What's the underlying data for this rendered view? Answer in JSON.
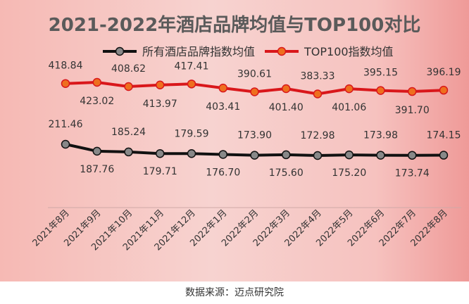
{
  "source_note": "数据来源：迈点研究院",
  "chart_data": {
    "type": "line",
    "title": "2021-2022年酒店品牌均值与TOP100对比",
    "xlabel": "",
    "ylabel": "",
    "grid": false,
    "legend_position": "top",
    "categories": [
      "2021年8月",
      "2021年9月",
      "2021年10月",
      "2021年11月",
      "2021年12月",
      "2022年1月",
      "2022年2月",
      "2022年3月",
      "2022年4月",
      "2022年5月",
      "2022年6月",
      "2022年7月",
      "2022年8月"
    ],
    "series": [
      {
        "name": "所有酒店品牌指数均值",
        "color": "#111111",
        "marker_color": "#888888",
        "values": [
          211.46,
          187.76,
          185.24,
          179.71,
          179.59,
          176.7,
          173.9,
          175.6,
          172.98,
          175.2,
          173.98,
          173.74,
          174.15
        ],
        "labels": [
          "211.46",
          "187.76",
          "185.24",
          "179.71",
          "179.59",
          "176.70",
          "173.90",
          "175.60",
          "172.98",
          "175.20",
          "173.98",
          "173.74",
          "174.15"
        ]
      },
      {
        "name": "TOP100指数均值",
        "color": "#d9171b",
        "marker_color": "#ee6f1e",
        "values": [
          418.84,
          423.02,
          408.62,
          413.97,
          417.41,
          403.41,
          390.61,
          401.4,
          383.33,
          401.06,
          395.15,
          391.7,
          396.19
        ],
        "labels": [
          "418.84",
          "423.02",
          "408.62",
          "413.97",
          "417.41",
          "403.41",
          "390.61",
          "401.40",
          "383.33",
          "401.06",
          "395.15",
          "391.70",
          "396.19"
        ]
      }
    ]
  }
}
